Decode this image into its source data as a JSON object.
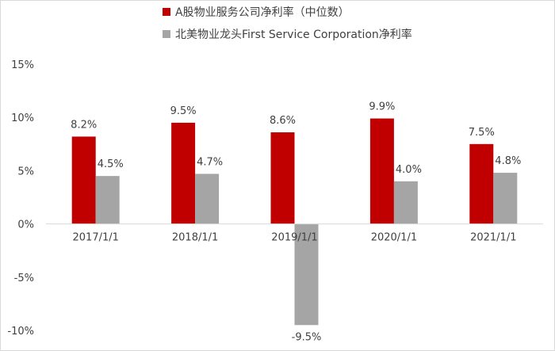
{
  "chart_data": {
    "type": "bar",
    "categories": [
      "2017/1/1",
      "2018/1/1",
      "2019/1/1",
      "2020/1/1",
      "2021/1/1"
    ],
    "series": [
      {
        "name": "A股物业服务公司净利率（中位数）",
        "values": [
          8.2,
          9.5,
          8.6,
          9.9,
          7.5
        ],
        "labels": [
          "8.2%",
          "9.5%",
          "8.6%",
          "9.9%",
          "7.5%"
        ],
        "color": "#C00000"
      },
      {
        "name": "北美物业龙头First Service Corporation净利率",
        "values": [
          4.5,
          4.7,
          -9.5,
          4.0,
          4.8
        ],
        "labels": [
          "4.5%",
          "4.7%",
          "-9.5%",
          "4.0%",
          "4.8%"
        ],
        "color": "#A5A5A5"
      }
    ],
    "y_ticks": [
      "15%",
      "10%",
      "5%",
      "0%",
      "-5%",
      "-10%"
    ],
    "y_tick_values": [
      15,
      10,
      5,
      0,
      -5,
      -10
    ],
    "ylim": [
      -10,
      15
    ],
    "legend_position": "top-center",
    "grid": false
  }
}
